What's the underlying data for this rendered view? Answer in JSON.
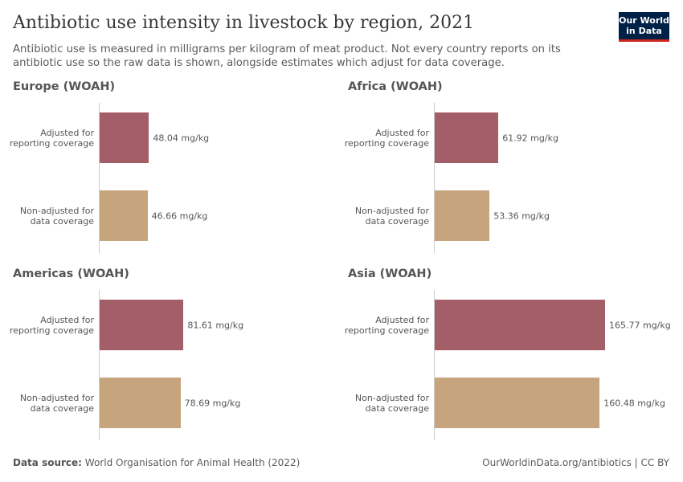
{
  "title": "Antibiotic use intensity in livestock by region, 2021",
  "subtitle": "Antibiotic use is measured in milligrams per kilogram of meat product. Not every country reports on its antibiotic use so the raw data is shown, alongside estimates which adjust for data coverage.",
  "logo": "Our World in Data",
  "source_label": "Data source:",
  "source": "World Organisation for Animal Health (2022)",
  "url_license": "OurWorldinData.org/antibiotics | CC BY",
  "chart_data": [
    {
      "type": "bar",
      "title": "Europe (WOAH)",
      "categories": [
        "Adjusted for reporting coverage",
        "Non-adjusted for data coverage"
      ],
      "values": [
        48.04,
        46.66
      ],
      "value_labels": [
        "48.04 mg/kg",
        "46.66 mg/kg"
      ],
      "colors": [
        "#a45e68",
        "#c6a47e"
      ]
    },
    {
      "type": "bar",
      "title": "Africa (WOAH)",
      "categories": [
        "Adjusted for reporting coverage",
        "Non-adjusted for data coverage"
      ],
      "values": [
        61.92,
        53.36
      ],
      "value_labels": [
        "61.92 mg/kg",
        "53.36 mg/kg"
      ],
      "colors": [
        "#a45e68",
        "#c6a47e"
      ]
    },
    {
      "type": "bar",
      "title": "Americas (WOAH)",
      "categories": [
        "Adjusted for reporting coverage",
        "Non-adjusted for data coverage"
      ],
      "values": [
        81.61,
        78.69
      ],
      "value_labels": [
        "81.61 mg/kg",
        "78.69 mg/kg"
      ],
      "colors": [
        "#a45e68",
        "#c6a47e"
      ]
    },
    {
      "type": "bar",
      "title": "Asia (WOAH)",
      "categories": [
        "Adjusted for reporting coverage",
        "Non-adjusted for data coverage"
      ],
      "values": [
        165.77,
        160.48
      ],
      "value_labels": [
        "165.77 mg/kg",
        "160.48 mg/kg"
      ],
      "colors": [
        "#a45e68",
        "#c6a47e"
      ]
    }
  ]
}
